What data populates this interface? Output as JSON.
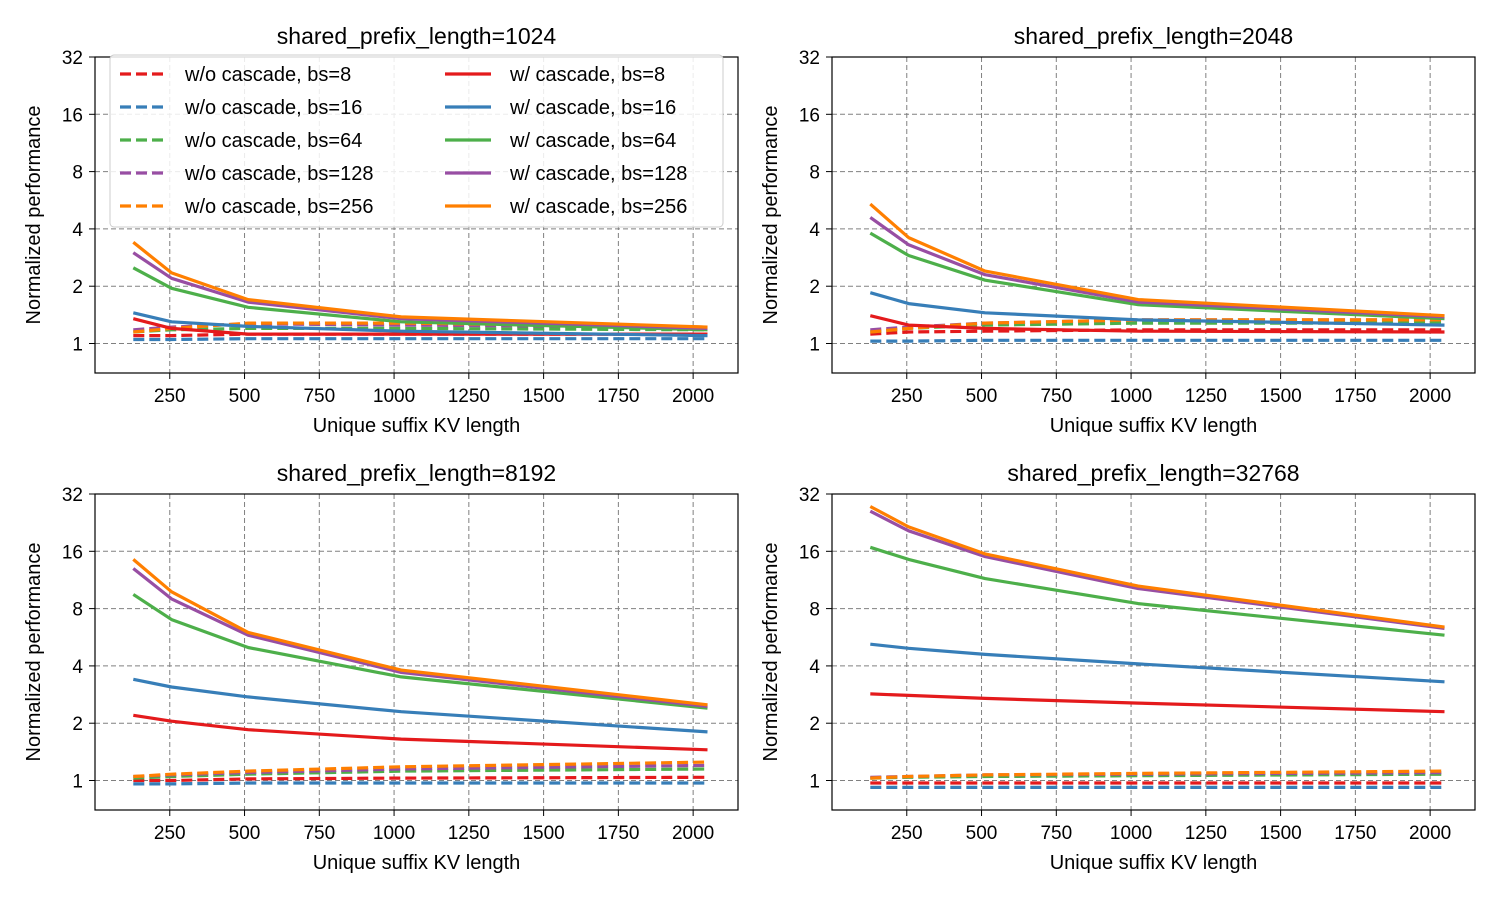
{
  "figure": {
    "xlabel": "Unique suffix KV length",
    "ylabel": "Normalized performance"
  },
  "colors": {
    "bs8": "#e41a1c",
    "bs16": "#377eb8",
    "bs64": "#4daf4a",
    "bs128": "#984ea3",
    "bs256": "#ff7f00",
    "grid": "#808080"
  },
  "legend": {
    "placement": "upper-left of first subplot",
    "entries": [
      {
        "label": "w/o cascade, bs=8",
        "color": "#e41a1c",
        "style": "dashed"
      },
      {
        "label": "w/o cascade, bs=16",
        "color": "#377eb8",
        "style": "dashed"
      },
      {
        "label": "w/o cascade, bs=64",
        "color": "#4daf4a",
        "style": "dashed"
      },
      {
        "label": "w/o cascade, bs=128",
        "color": "#984ea3",
        "style": "dashed"
      },
      {
        "label": "w/o cascade, bs=256",
        "color": "#ff7f00",
        "style": "dashed"
      },
      {
        "label": "w/ cascade, bs=8",
        "color": "#e41a1c",
        "style": "solid"
      },
      {
        "label": "w/ cascade, bs=16",
        "color": "#377eb8",
        "style": "solid"
      },
      {
        "label": "w/ cascade, bs=64",
        "color": "#4daf4a",
        "style": "solid"
      },
      {
        "label": "w/ cascade, bs=128",
        "color": "#984ea3",
        "style": "solid"
      },
      {
        "label": "w/ cascade, bs=256",
        "color": "#ff7f00",
        "style": "solid"
      }
    ]
  },
  "chart_data": [
    {
      "type": "line",
      "title": "shared_prefix_length=1024",
      "xlabel": "Unique suffix KV length",
      "ylabel": "Normalized performance",
      "yscale": "log2",
      "ylim": [
        0.7,
        32
      ],
      "xlim": [
        0,
        2150
      ],
      "xticks": [
        250,
        500,
        750,
        1000,
        1250,
        1500,
        1750,
        2000
      ],
      "yticks": [
        1,
        2,
        4,
        8,
        16,
        32
      ],
      "grid": true,
      "x": [
        128,
        256,
        512,
        1024,
        2048
      ],
      "series": [
        {
          "name": "w/o cascade, bs=8",
          "color": "#e41a1c",
          "style": "dashed",
          "values": [
            1.1,
            1.1,
            1.12,
            1.12,
            1.12
          ]
        },
        {
          "name": "w/o cascade, bs=16",
          "color": "#377eb8",
          "style": "dashed",
          "values": [
            1.05,
            1.05,
            1.06,
            1.06,
            1.06
          ]
        },
        {
          "name": "w/o cascade, bs=64",
          "color": "#4daf4a",
          "style": "dashed",
          "values": [
            1.15,
            1.18,
            1.2,
            1.2,
            1.18
          ]
        },
        {
          "name": "w/o cascade, bs=128",
          "color": "#984ea3",
          "style": "dashed",
          "values": [
            1.18,
            1.22,
            1.27,
            1.25,
            1.22
          ]
        },
        {
          "name": "w/o cascade, bs=256",
          "color": "#ff7f00",
          "style": "dashed",
          "values": [
            1.15,
            1.2,
            1.28,
            1.28,
            1.22
          ]
        },
        {
          "name": "w/ cascade, bs=8",
          "color": "#e41a1c",
          "style": "solid",
          "values": [
            1.35,
            1.2,
            1.12,
            1.12,
            1.12
          ]
        },
        {
          "name": "w/ cascade, bs=16",
          "color": "#377eb8",
          "style": "solid",
          "values": [
            1.45,
            1.3,
            1.23,
            1.16,
            1.1
          ]
        },
        {
          "name": "w/ cascade, bs=64",
          "color": "#4daf4a",
          "style": "solid",
          "values": [
            2.5,
            1.95,
            1.55,
            1.3,
            1.18
          ]
        },
        {
          "name": "w/ cascade, bs=128",
          "color": "#984ea3",
          "style": "solid",
          "values": [
            3.0,
            2.2,
            1.65,
            1.35,
            1.2
          ]
        },
        {
          "name": "w/ cascade, bs=256",
          "color": "#ff7f00",
          "style": "solid",
          "values": [
            3.4,
            2.35,
            1.7,
            1.38,
            1.22
          ]
        }
      ]
    },
    {
      "type": "line",
      "title": "shared_prefix_length=2048",
      "xlabel": "Unique suffix KV length",
      "ylabel": "Normalized performance",
      "yscale": "log2",
      "ylim": [
        0.7,
        32
      ],
      "xlim": [
        0,
        2150
      ],
      "xticks": [
        250,
        500,
        750,
        1000,
        1250,
        1500,
        1750,
        2000
      ],
      "yticks": [
        1,
        2,
        4,
        8,
        16,
        32
      ],
      "grid": true,
      "x": [
        128,
        256,
        512,
        1024,
        2048
      ],
      "series": [
        {
          "name": "w/o cascade, bs=8",
          "color": "#e41a1c",
          "style": "dashed",
          "values": [
            1.12,
            1.15,
            1.16,
            1.18,
            1.18
          ]
        },
        {
          "name": "w/o cascade, bs=16",
          "color": "#377eb8",
          "style": "dashed",
          "values": [
            1.03,
            1.03,
            1.04,
            1.04,
            1.04
          ]
        },
        {
          "name": "w/o cascade, bs=64",
          "color": "#4daf4a",
          "style": "dashed",
          "values": [
            1.15,
            1.2,
            1.25,
            1.28,
            1.28
          ]
        },
        {
          "name": "w/o cascade, bs=128",
          "color": "#984ea3",
          "style": "dashed",
          "values": [
            1.18,
            1.22,
            1.28,
            1.33,
            1.33
          ]
        },
        {
          "name": "w/o cascade, bs=256",
          "color": "#ff7f00",
          "style": "dashed",
          "values": [
            1.15,
            1.2,
            1.28,
            1.33,
            1.33
          ]
        },
        {
          "name": "w/ cascade, bs=8",
          "color": "#e41a1c",
          "style": "solid",
          "values": [
            1.4,
            1.25,
            1.2,
            1.16,
            1.15
          ]
        },
        {
          "name": "w/ cascade, bs=16",
          "color": "#377eb8",
          "style": "solid",
          "values": [
            1.85,
            1.62,
            1.45,
            1.33,
            1.25
          ]
        },
        {
          "name": "w/ cascade, bs=64",
          "color": "#4daf4a",
          "style": "solid",
          "values": [
            3.8,
            2.9,
            2.15,
            1.6,
            1.35
          ]
        },
        {
          "name": "w/ cascade, bs=128",
          "color": "#984ea3",
          "style": "solid",
          "values": [
            4.6,
            3.3,
            2.3,
            1.65,
            1.38
          ]
        },
        {
          "name": "w/ cascade, bs=256",
          "color": "#ff7f00",
          "style": "solid",
          "values": [
            5.4,
            3.6,
            2.4,
            1.7,
            1.4
          ]
        }
      ]
    },
    {
      "type": "line",
      "title": "shared_prefix_length=8192",
      "xlabel": "Unique suffix KV length",
      "ylabel": "Normalized performance",
      "yscale": "log2",
      "ylim": [
        0.7,
        32
      ],
      "xlim": [
        0,
        2150
      ],
      "xticks": [
        250,
        500,
        750,
        1000,
        1250,
        1500,
        1750,
        2000
      ],
      "yticks": [
        1,
        2,
        4,
        8,
        16,
        32
      ],
      "grid": true,
      "x": [
        128,
        256,
        512,
        1024,
        2048
      ],
      "series": [
        {
          "name": "w/o cascade, bs=8",
          "color": "#e41a1c",
          "style": "dashed",
          "values": [
            1.0,
            1.0,
            1.02,
            1.03,
            1.04
          ]
        },
        {
          "name": "w/o cascade, bs=16",
          "color": "#377eb8",
          "style": "dashed",
          "values": [
            0.96,
            0.96,
            0.97,
            0.97,
            0.97
          ]
        },
        {
          "name": "w/o cascade, bs=64",
          "color": "#4daf4a",
          "style": "dashed",
          "values": [
            1.03,
            1.05,
            1.08,
            1.12,
            1.15
          ]
        },
        {
          "name": "w/o cascade, bs=128",
          "color": "#984ea3",
          "style": "dashed",
          "values": [
            1.05,
            1.07,
            1.1,
            1.15,
            1.2
          ]
        },
        {
          "name": "w/o cascade, bs=256",
          "color": "#ff7f00",
          "style": "dashed",
          "values": [
            1.05,
            1.08,
            1.12,
            1.18,
            1.25
          ]
        },
        {
          "name": "w/ cascade, bs=8",
          "color": "#e41a1c",
          "style": "solid",
          "values": [
            2.2,
            2.05,
            1.85,
            1.65,
            1.45
          ]
        },
        {
          "name": "w/ cascade, bs=16",
          "color": "#377eb8",
          "style": "solid",
          "values": [
            3.4,
            3.1,
            2.75,
            2.3,
            1.8
          ]
        },
        {
          "name": "w/ cascade, bs=64",
          "color": "#4daf4a",
          "style": "solid",
          "values": [
            9.5,
            7.0,
            5.0,
            3.5,
            2.4
          ]
        },
        {
          "name": "w/ cascade, bs=128",
          "color": "#984ea3",
          "style": "solid",
          "values": [
            13.0,
            9.0,
            5.8,
            3.7,
            2.45
          ]
        },
        {
          "name": "w/ cascade, bs=256",
          "color": "#ff7f00",
          "style": "solid",
          "values": [
            14.5,
            9.8,
            6.0,
            3.8,
            2.5
          ]
        }
      ]
    },
    {
      "type": "line",
      "title": "shared_prefix_length=32768",
      "xlabel": "Unique suffix KV length",
      "ylabel": "Normalized performance",
      "yscale": "log2",
      "ylim": [
        0.7,
        32
      ],
      "xlim": [
        0,
        2150
      ],
      "xticks": [
        250,
        500,
        750,
        1000,
        1250,
        1500,
        1750,
        2000
      ],
      "yticks": [
        1,
        2,
        4,
        8,
        16,
        32
      ],
      "grid": true,
      "x": [
        128,
        256,
        512,
        1024,
        2048
      ],
      "series": [
        {
          "name": "w/o cascade, bs=8",
          "color": "#e41a1c",
          "style": "dashed",
          "values": [
            0.97,
            0.97,
            0.97,
            0.97,
            0.97
          ]
        },
        {
          "name": "w/o cascade, bs=16",
          "color": "#377eb8",
          "style": "dashed",
          "values": [
            0.92,
            0.92,
            0.92,
            0.92,
            0.92
          ]
        },
        {
          "name": "w/o cascade, bs=64",
          "color": "#4daf4a",
          "style": "dashed",
          "values": [
            1.03,
            1.04,
            1.05,
            1.06,
            1.08
          ]
        },
        {
          "name": "w/o cascade, bs=128",
          "color": "#984ea3",
          "style": "dashed",
          "values": [
            1.04,
            1.05,
            1.07,
            1.08,
            1.1
          ]
        },
        {
          "name": "w/o cascade, bs=256",
          "color": "#ff7f00",
          "style": "dashed",
          "values": [
            1.03,
            1.05,
            1.07,
            1.09,
            1.12
          ]
        },
        {
          "name": "w/ cascade, bs=8",
          "color": "#e41a1c",
          "style": "solid",
          "values": [
            2.85,
            2.8,
            2.7,
            2.55,
            2.3
          ]
        },
        {
          "name": "w/ cascade, bs=16",
          "color": "#377eb8",
          "style": "solid",
          "values": [
            5.2,
            4.95,
            4.6,
            4.1,
            3.3
          ]
        },
        {
          "name": "w/ cascade, bs=64",
          "color": "#4daf4a",
          "style": "solid",
          "values": [
            16.8,
            14.5,
            11.5,
            8.5,
            5.8
          ]
        },
        {
          "name": "w/ cascade, bs=128",
          "color": "#984ea3",
          "style": "solid",
          "values": [
            26.0,
            20.5,
            15.0,
            10.2,
            6.3
          ]
        },
        {
          "name": "w/ cascade, bs=256",
          "color": "#ff7f00",
          "style": "solid",
          "values": [
            27.5,
            21.5,
            15.5,
            10.5,
            6.4
          ]
        }
      ]
    }
  ]
}
